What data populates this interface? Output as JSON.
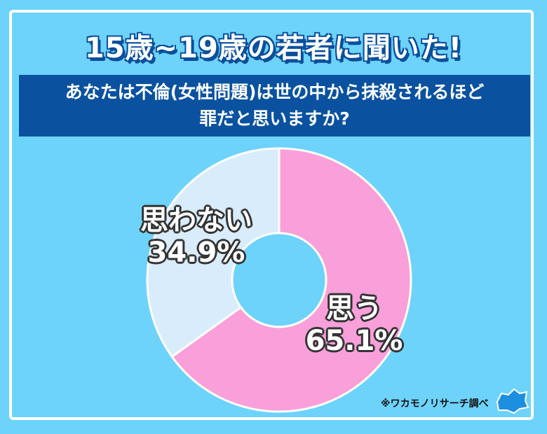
{
  "header": {
    "title": "15歳~19歳の若者に聞いた!",
    "question_line1": "あなたは不倫(女性問題)は世の中から抹殺されるほど",
    "question_line2": "罪だと思いますか?"
  },
  "chart_data": {
    "type": "pie",
    "donut": true,
    "categories": [
      "思う",
      "思わない"
    ],
    "values": [
      65.1,
      34.9
    ],
    "value_labels": [
      "65.1%",
      "34.9%"
    ],
    "colors": [
      "#f9a0da",
      "#d9ecfb"
    ],
    "start": "top, clockwise"
  },
  "footer": {
    "source": "※ワカモノリサーチ調べ",
    "logo_text": "ワカモノリサーチ"
  }
}
